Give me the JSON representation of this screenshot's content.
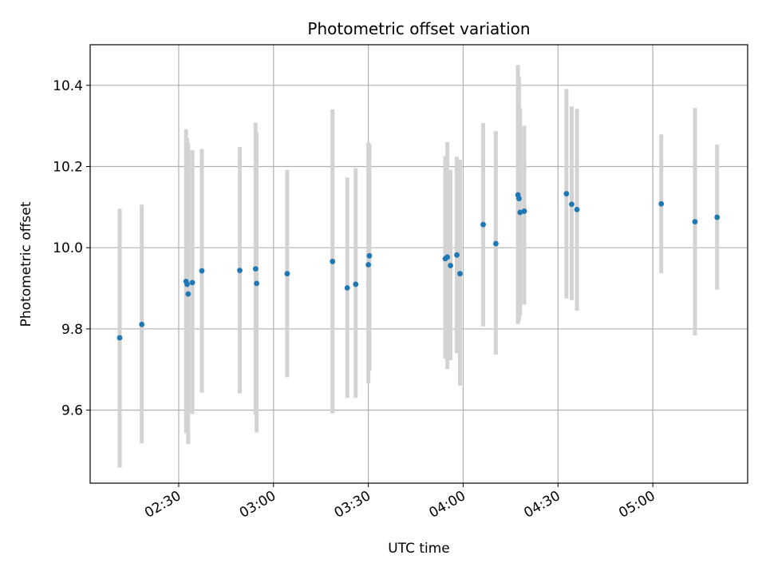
{
  "chart_data": {
    "type": "scatter",
    "title": "Photometric offset variation",
    "xlabel": "UTC time",
    "ylabel": "Photometric offset",
    "x_axis_kind": "time",
    "xlim": [
      "02:02",
      "05:30"
    ],
    "ylim": [
      9.42,
      10.5
    ],
    "x_ticks": [
      "02:30",
      "03:00",
      "03:30",
      "04:00",
      "04:30",
      "05:00"
    ],
    "y_ticks": [
      9.6,
      9.8,
      10.0,
      10.2,
      10.4
    ],
    "y_tick_labels": [
      "9.6",
      "9.8",
      "10.0",
      "10.2",
      "10.4"
    ],
    "grid": true,
    "legend": false,
    "colors": {
      "point": "#1f77b4",
      "errorbar": "#d3d3d3",
      "grid": "#b0b0b0",
      "axes": "#000000"
    },
    "series": [
      {
        "points": [
          {
            "x": "02:11:20",
            "y": 9.778,
            "ylow": 9.458,
            "yhigh": 10.096
          },
          {
            "x": "02:18:20",
            "y": 9.811,
            "ylow": 9.518,
            "yhigh": 10.106
          },
          {
            "x": "02:32:20",
            "y": 9.917,
            "ylow": 9.543,
            "yhigh": 10.292
          },
          {
            "x": "02:32:40",
            "y": 9.91,
            "ylow": 9.553,
            "yhigh": 10.27
          },
          {
            "x": "02:33:00",
            "y": 9.886,
            "ylow": 9.516,
            "yhigh": 10.258
          },
          {
            "x": "02:34:20",
            "y": 9.914,
            "ylow": 9.59,
            "yhigh": 10.24
          },
          {
            "x": "02:37:20",
            "y": 9.943,
            "ylow": 9.643,
            "yhigh": 10.243
          },
          {
            "x": "02:49:20",
            "y": 9.944,
            "ylow": 9.641,
            "yhigh": 10.248
          },
          {
            "x": "02:54:20",
            "y": 9.948,
            "ylow": 9.589,
            "yhigh": 10.308
          },
          {
            "x": "02:54:40",
            "y": 9.912,
            "ylow": 9.545,
            "yhigh": 10.283
          },
          {
            "x": "03:04:20",
            "y": 9.936,
            "ylow": 9.681,
            "yhigh": 10.192
          },
          {
            "x": "03:18:40",
            "y": 9.966,
            "ylow": 9.592,
            "yhigh": 10.341
          },
          {
            "x": "03:23:20",
            "y": 9.901,
            "ylow": 9.63,
            "yhigh": 10.173
          },
          {
            "x": "03:26:00",
            "y": 9.91,
            "ylow": 9.63,
            "yhigh": 10.196
          },
          {
            "x": "03:30:00",
            "y": 9.958,
            "ylow": 9.666,
            "yhigh": 10.259
          },
          {
            "x": "03:30:20",
            "y": 9.98,
            "ylow": 9.697,
            "yhigh": 10.255
          },
          {
            "x": "03:54:20",
            "y": 9.973,
            "ylow": 9.727,
            "yhigh": 10.226
          },
          {
            "x": "03:55:00",
            "y": 9.977,
            "ylow": 9.701,
            "yhigh": 10.26
          },
          {
            "x": "03:56:00",
            "y": 9.956,
            "ylow": 9.723,
            "yhigh": 10.192
          },
          {
            "x": "03:58:00",
            "y": 9.982,
            "ylow": 9.74,
            "yhigh": 10.224
          },
          {
            "x": "03:59:00",
            "y": 9.936,
            "ylow": 9.66,
            "yhigh": 10.217
          },
          {
            "x": "04:06:20",
            "y": 10.057,
            "ylow": 9.806,
            "yhigh": 10.307
          },
          {
            "x": "04:10:20",
            "y": 10.01,
            "ylow": 9.737,
            "yhigh": 10.287
          },
          {
            "x": "04:17:20",
            "y": 10.13,
            "ylow": 9.812,
            "yhigh": 10.45
          },
          {
            "x": "04:17:40",
            "y": 10.121,
            "ylow": 9.82,
            "yhigh": 10.42
          },
          {
            "x": "04:18:00",
            "y": 10.087,
            "ylow": 9.833,
            "yhigh": 10.344
          },
          {
            "x": "04:19:20",
            "y": 10.09,
            "ylow": 9.86,
            "yhigh": 10.3
          },
          {
            "x": "04:32:40",
            "y": 10.133,
            "ylow": 9.875,
            "yhigh": 10.391
          },
          {
            "x": "04:34:20",
            "y": 10.107,
            "ylow": 9.871,
            "yhigh": 10.348
          },
          {
            "x": "04:36:00",
            "y": 10.094,
            "ylow": 9.845,
            "yhigh": 10.342
          },
          {
            "x": "05:02:40",
            "y": 10.108,
            "ylow": 9.937,
            "yhigh": 10.279
          },
          {
            "x": "05:13:20",
            "y": 10.064,
            "ylow": 9.784,
            "yhigh": 10.344
          },
          {
            "x": "05:20:20",
            "y": 10.075,
            "ylow": 9.897,
            "yhigh": 10.254
          }
        ]
      }
    ]
  }
}
